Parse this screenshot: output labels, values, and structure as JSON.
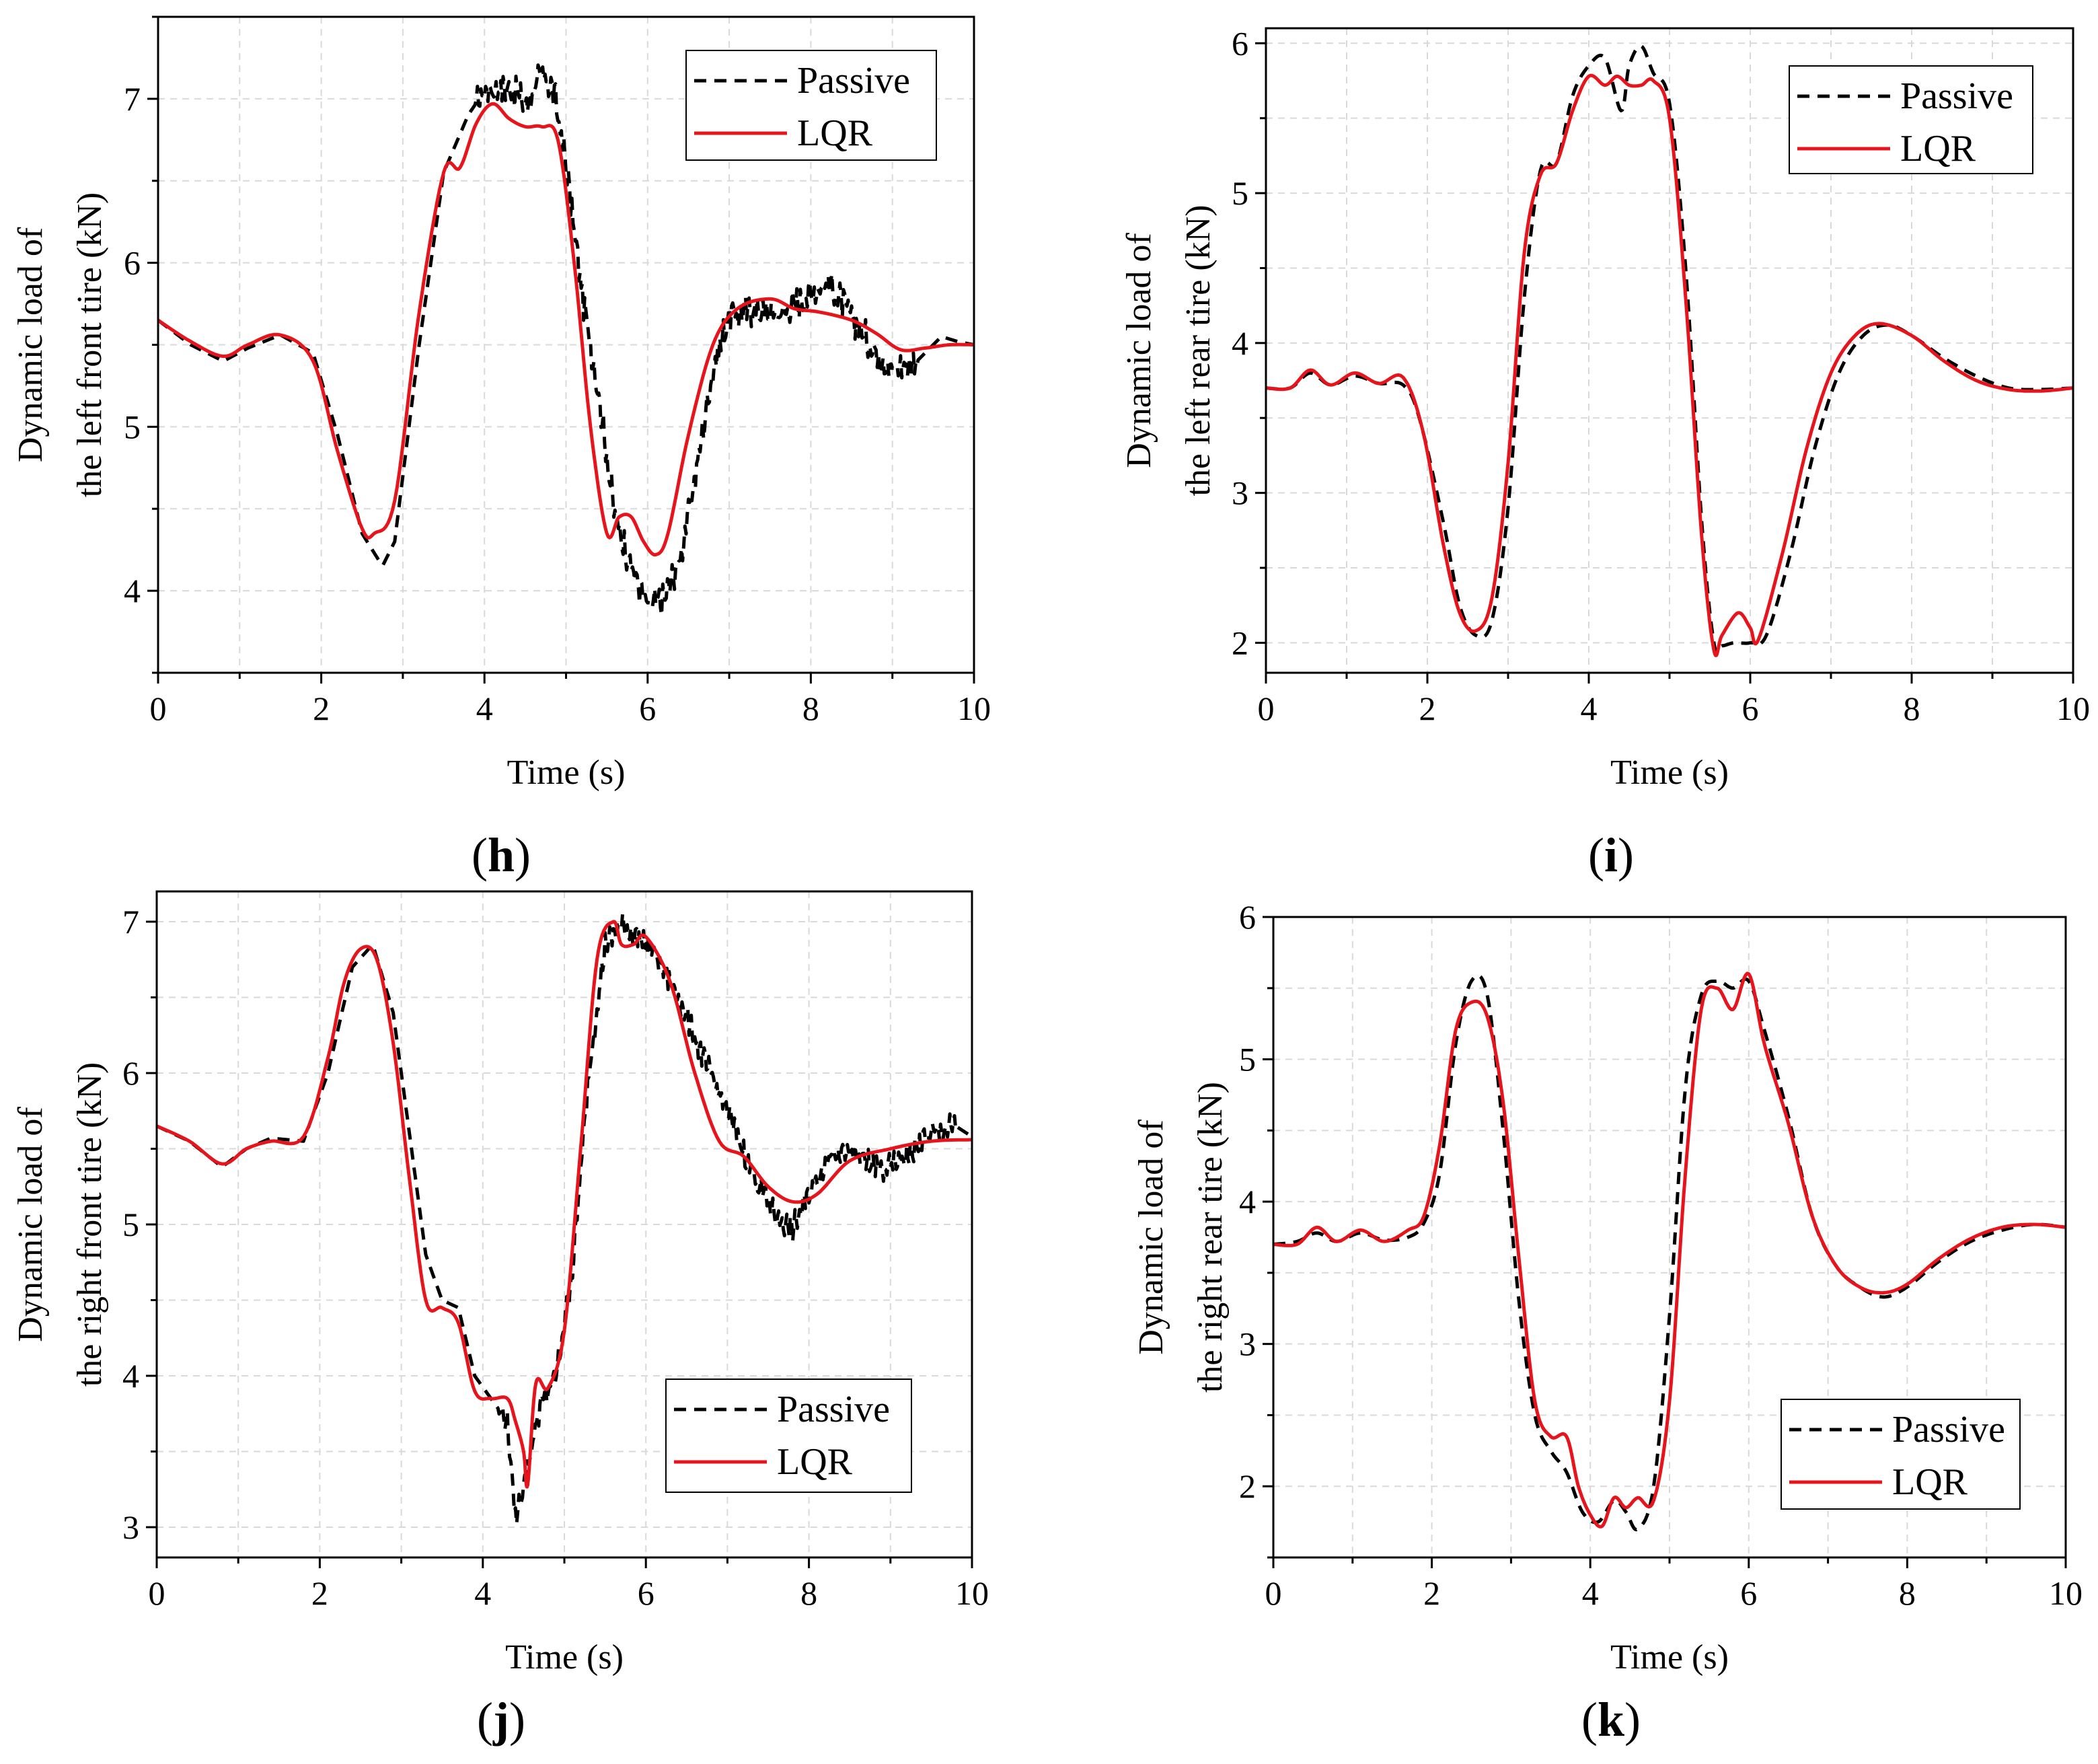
{
  "colors": {
    "passive": "#000000",
    "lqr": "#e8141c",
    "grid": "#d9d9d9",
    "axis": "#000000"
  },
  "chart_data": [
    {
      "type": "line",
      "id": "h",
      "panel_label": "h",
      "xlabel": "Time (s)",
      "ylabel_line1": "Dynamic load of",
      "ylabel_line2": "the left front tire (kN)",
      "xlim": [
        0,
        10
      ],
      "ylim": [
        3.5,
        7.5
      ],
      "xticks": [
        0,
        2,
        4,
        6,
        8,
        10
      ],
      "xtick_labels": [
        "0",
        "2",
        "4",
        "6",
        "8",
        "10"
      ],
      "yticks": [
        4,
        5,
        6,
        7
      ],
      "ytick_labels": [
        "4",
        "5",
        "6",
        "7"
      ],
      "grid": true,
      "legend_position": "top-right",
      "legend": [
        "Passive",
        "LQR"
      ],
      "series": [
        {
          "name": "Passive",
          "style": "dashed",
          "noise": 0.07,
          "noise_range": [
            3.9,
            9.3
          ],
          "x": [
            0,
            0.4,
            0.8,
            1.1,
            1.5,
            1.9,
            2.2,
            2.5,
            2.75,
            2.9,
            3.2,
            3.5,
            3.8,
            4.0,
            4.2,
            4.4,
            4.5,
            4.7,
            4.85,
            5.0,
            5.2,
            5.4,
            5.6,
            5.8,
            6.0,
            6.2,
            6.4,
            6.6,
            6.8,
            7.0,
            7.3,
            7.6,
            7.9,
            8.2,
            8.4,
            8.6,
            8.8,
            9.0,
            9.3,
            9.6,
            9.8,
            10
          ],
          "y": [
            5.65,
            5.5,
            5.4,
            5.48,
            5.56,
            5.45,
            4.95,
            4.35,
            4.15,
            4.3,
            5.5,
            6.55,
            6.9,
            7.05,
            7.07,
            7.05,
            6.95,
            7.15,
            7.05,
            6.6,
            5.8,
            5.2,
            4.45,
            4.15,
            3.9,
            3.95,
            4.2,
            4.75,
            5.35,
            5.68,
            5.72,
            5.68,
            5.78,
            5.88,
            5.75,
            5.6,
            5.45,
            5.35,
            5.4,
            5.55,
            5.52,
            5.5
          ]
        },
        {
          "name": "LQR",
          "style": "solid",
          "x": [
            0,
            0.4,
            0.8,
            1.1,
            1.5,
            1.9,
            2.2,
            2.5,
            2.65,
            2.9,
            3.2,
            3.5,
            3.7,
            3.9,
            4.1,
            4.3,
            4.5,
            4.7,
            4.9,
            5.1,
            5.3,
            5.5,
            5.65,
            5.8,
            5.95,
            6.1,
            6.25,
            6.5,
            6.8,
            7.1,
            7.5,
            7.8,
            8.1,
            8.5,
            8.8,
            9.1,
            9.4,
            9.7,
            10
          ],
          "y": [
            5.65,
            5.52,
            5.43,
            5.5,
            5.56,
            5.4,
            4.85,
            4.38,
            4.35,
            4.55,
            5.7,
            6.55,
            6.58,
            6.85,
            6.97,
            6.88,
            6.83,
            6.83,
            6.75,
            6.0,
            5.0,
            4.35,
            4.45,
            4.45,
            4.3,
            4.22,
            4.35,
            4.95,
            5.5,
            5.72,
            5.78,
            5.72,
            5.7,
            5.65,
            5.57,
            5.47,
            5.48,
            5.5,
            5.5
          ]
        }
      ]
    },
    {
      "type": "line",
      "id": "i",
      "panel_label": "i",
      "xlabel": "Time (s)",
      "ylabel_line1": "Dynamic load of",
      "ylabel_line2": "the left rear tire (kN)",
      "xlim": [
        0,
        10
      ],
      "ylim": [
        1.8,
        6.1
      ],
      "xticks": [
        0,
        2,
        4,
        6,
        8,
        10
      ],
      "xtick_labels": [
        "0",
        "2",
        "4",
        "6",
        "8",
        "10"
      ],
      "yticks": [
        2,
        3,
        4,
        5,
        6
      ],
      "ytick_labels": [
        "2",
        "3",
        "4",
        "5",
        "6"
      ],
      "grid": true,
      "legend_position": "top-right",
      "legend": [
        "Passive",
        "LQR"
      ],
      "series": [
        {
          "name": "Passive",
          "style": "dashed",
          "noise": 0.0,
          "noise_range": [
            0,
            0
          ],
          "x": [
            0,
            0.3,
            0.55,
            0.8,
            1.1,
            1.4,
            1.7,
            1.9,
            2.2,
            2.4,
            2.6,
            2.8,
            3.0,
            3.2,
            3.4,
            3.6,
            3.8,
            4.0,
            4.2,
            4.4,
            4.5,
            4.65,
            4.8,
            5.0,
            5.2,
            5.4,
            5.55,
            5.65,
            5.8,
            6.0,
            6.2,
            6.5,
            6.8,
            7.1,
            7.4,
            7.7,
            8.0,
            8.4,
            8.8,
            9.2,
            9.6,
            10
          ],
          "y": [
            3.7,
            3.7,
            3.8,
            3.72,
            3.78,
            3.73,
            3.72,
            3.5,
            2.8,
            2.25,
            2.05,
            2.15,
            2.9,
            4.3,
            5.15,
            5.2,
            5.65,
            5.85,
            5.9,
            5.55,
            5.85,
            5.98,
            5.8,
            5.6,
            4.5,
            2.8,
            2.0,
            1.98,
            2.0,
            2.0,
            2.05,
            2.6,
            3.3,
            3.8,
            4.05,
            4.12,
            4.05,
            3.9,
            3.78,
            3.7,
            3.69,
            3.7
          ]
        },
        {
          "name": "LQR",
          "style": "solid",
          "x": [
            0,
            0.3,
            0.55,
            0.8,
            1.1,
            1.4,
            1.7,
            1.95,
            2.2,
            2.4,
            2.6,
            2.8,
            3.0,
            3.2,
            3.4,
            3.6,
            3.8,
            4.0,
            4.2,
            4.35,
            4.5,
            4.65,
            4.8,
            5.0,
            5.2,
            5.4,
            5.55,
            5.65,
            5.85,
            6.0,
            6.1,
            6.4,
            6.7,
            7.0,
            7.3,
            7.6,
            8.0,
            8.4,
            8.8,
            9.2,
            9.6,
            10
          ],
          "y": [
            3.7,
            3.7,
            3.82,
            3.72,
            3.8,
            3.73,
            3.77,
            3.4,
            2.65,
            2.2,
            2.08,
            2.3,
            3.2,
            4.6,
            5.12,
            5.2,
            5.55,
            5.78,
            5.72,
            5.78,
            5.72,
            5.72,
            5.75,
            5.5,
            4.3,
            2.7,
            1.95,
            2.05,
            2.2,
            2.1,
            2.02,
            2.6,
            3.3,
            3.8,
            4.05,
            4.13,
            4.05,
            3.88,
            3.75,
            3.69,
            3.68,
            3.7
          ]
        }
      ]
    },
    {
      "type": "line",
      "id": "j",
      "panel_label": "j",
      "xlabel": "Time (s)",
      "ylabel_line1": "Dynamic load of",
      "ylabel_line2": "the right front tire (kN)",
      "xlim": [
        0,
        10
      ],
      "ylim": [
        2.8,
        7.2
      ],
      "xticks": [
        0,
        2,
        4,
        6,
        8,
        10
      ],
      "xtick_labels": [
        "0",
        "2",
        "4",
        "6",
        "8",
        "10"
      ],
      "yticks": [
        3,
        4,
        5,
        6,
        7
      ],
      "ytick_labels": [
        "3",
        "4",
        "5",
        "6",
        "7"
      ],
      "grid": true,
      "legend_position": "bottom-right",
      "legend": [
        "Passive",
        "LQR"
      ],
      "series": [
        {
          "name": "Passive",
          "style": "dashed",
          "noise": 0.06,
          "noise_range": [
            4.2,
            9.8
          ],
          "x": [
            0,
            0.4,
            0.8,
            1.1,
            1.4,
            1.8,
            2.1,
            2.4,
            2.65,
            2.9,
            3.1,
            3.3,
            3.5,
            3.7,
            3.9,
            4.1,
            4.3,
            4.4,
            4.55,
            4.7,
            4.9,
            5.1,
            5.3,
            5.5,
            5.7,
            5.9,
            6.1,
            6.4,
            6.7,
            7.0,
            7.3,
            7.6,
            7.8,
            8.0,
            8.3,
            8.6,
            8.9,
            9.2,
            9.5,
            9.8,
            10
          ],
          "y": [
            5.65,
            5.55,
            5.38,
            5.5,
            5.57,
            5.55,
            6.0,
            6.7,
            6.85,
            6.4,
            5.6,
            4.8,
            4.5,
            4.45,
            4.0,
            3.85,
            3.7,
            3.05,
            3.4,
            3.8,
            4.0,
            4.7,
            6.0,
            6.85,
            6.97,
            6.9,
            6.8,
            6.5,
            6.1,
            5.75,
            5.35,
            5.05,
            4.97,
            5.2,
            5.5,
            5.45,
            5.35,
            5.45,
            5.6,
            5.65,
            5.58
          ]
        },
        {
          "name": "LQR",
          "style": "solid",
          "x": [
            0,
            0.4,
            0.8,
            1.1,
            1.4,
            1.8,
            2.1,
            2.3,
            2.5,
            2.7,
            2.9,
            3.1,
            3.3,
            3.5,
            3.7,
            3.9,
            4.1,
            4.3,
            4.4,
            4.5,
            4.55,
            4.65,
            4.8,
            5.0,
            5.2,
            5.4,
            5.6,
            5.7,
            5.85,
            6.0,
            6.3,
            6.6,
            6.9,
            7.2,
            7.5,
            7.8,
            8.1,
            8.5,
            9.0,
            9.5,
            10
          ],
          "y": [
            5.65,
            5.55,
            5.4,
            5.5,
            5.55,
            5.58,
            6.1,
            6.6,
            6.82,
            6.75,
            6.2,
            5.3,
            4.5,
            4.45,
            4.35,
            3.9,
            3.85,
            3.85,
            3.7,
            3.5,
            3.28,
            3.95,
            3.92,
            4.3,
            5.5,
            6.75,
            7.0,
            6.85,
            6.85,
            6.9,
            6.6,
            6.0,
            5.55,
            5.45,
            5.25,
            5.15,
            5.2,
            5.42,
            5.5,
            5.55,
            5.56
          ]
        }
      ]
    },
    {
      "type": "line",
      "id": "k",
      "panel_label": "k",
      "xlabel": "Time (s)",
      "ylabel_line1": "Dynamic load of",
      "ylabel_line2": "the right rear tire (kN)",
      "xlim": [
        0,
        10
      ],
      "ylim": [
        1.5,
        6.0
      ],
      "xticks": [
        0,
        2,
        4,
        6,
        8,
        10
      ],
      "xtick_labels": [
        "0",
        "2",
        "4",
        "6",
        "8",
        "10"
      ],
      "yticks": [
        2,
        3,
        4,
        5,
        6
      ],
      "ytick_labels": [
        "2",
        "3",
        "4",
        "5",
        "6"
      ],
      "grid": true,
      "legend_position": "bottom-right",
      "legend": [
        "Passive",
        "LQR"
      ],
      "series": [
        {
          "name": "Passive",
          "style": "dashed",
          "noise": 0.0,
          "noise_range": [
            0,
            0
          ],
          "x": [
            0,
            0.3,
            0.55,
            0.8,
            1.1,
            1.4,
            1.7,
            1.9,
            2.1,
            2.3,
            2.5,
            2.7,
            2.9,
            3.1,
            3.3,
            3.5,
            3.7,
            3.9,
            4.1,
            4.3,
            4.45,
            4.6,
            4.8,
            5.0,
            5.2,
            5.4,
            5.6,
            5.8,
            6.0,
            6.2,
            6.5,
            6.8,
            7.1,
            7.4,
            7.7,
            8.0,
            8.4,
            8.8,
            9.2,
            9.6,
            10
          ],
          "y": [
            3.7,
            3.72,
            3.78,
            3.72,
            3.78,
            3.73,
            3.75,
            3.85,
            4.2,
            5.1,
            5.55,
            5.45,
            4.5,
            3.3,
            2.5,
            2.25,
            2.1,
            1.82,
            1.75,
            1.9,
            1.82,
            1.7,
            2.0,
            3.2,
            4.8,
            5.45,
            5.55,
            5.5,
            5.55,
            5.2,
            4.6,
            3.9,
            3.55,
            3.4,
            3.33,
            3.4,
            3.58,
            3.72,
            3.8,
            3.84,
            3.82
          ]
        },
        {
          "name": "LQR",
          "style": "solid",
          "x": [
            0,
            0.3,
            0.55,
            0.8,
            1.1,
            1.4,
            1.7,
            1.9,
            2.1,
            2.3,
            2.5,
            2.7,
            2.9,
            3.1,
            3.3,
            3.5,
            3.7,
            3.85,
            4.0,
            4.15,
            4.3,
            4.45,
            4.6,
            4.8,
            5.0,
            5.2,
            5.4,
            5.6,
            5.8,
            6.0,
            6.2,
            6.5,
            6.8,
            7.1,
            7.4,
            7.7,
            8.0,
            8.4,
            8.8,
            9.2,
            9.6,
            10
          ],
          "y": [
            3.7,
            3.7,
            3.82,
            3.72,
            3.8,
            3.72,
            3.8,
            3.9,
            4.4,
            5.2,
            5.4,
            5.3,
            4.7,
            3.6,
            2.6,
            2.35,
            2.35,
            2.0,
            1.8,
            1.72,
            1.92,
            1.85,
            1.92,
            1.9,
            2.6,
            4.2,
            5.35,
            5.5,
            5.35,
            5.6,
            5.1,
            4.55,
            3.9,
            3.55,
            3.4,
            3.36,
            3.42,
            3.6,
            3.74,
            3.82,
            3.84,
            3.82
          ]
        }
      ]
    }
  ]
}
